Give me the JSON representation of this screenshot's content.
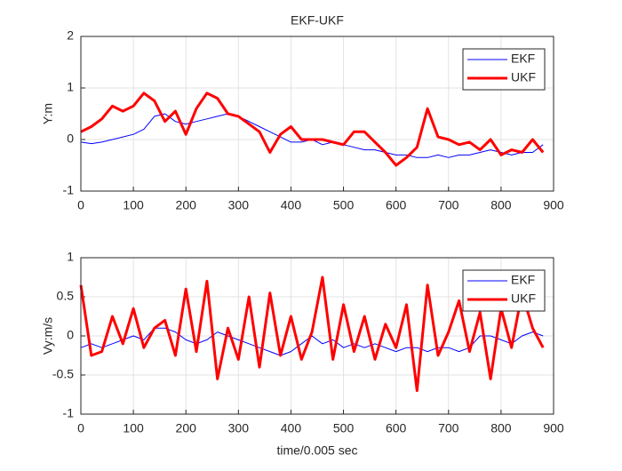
{
  "chart_data": [
    {
      "type": "line",
      "title": "EKF-UKF",
      "ylabel": "Y:m",
      "x": [
        0,
        20,
        40,
        60,
        80,
        100,
        120,
        140,
        160,
        180,
        200,
        220,
        240,
        260,
        280,
        300,
        320,
        340,
        360,
        380,
        400,
        420,
        440,
        460,
        480,
        500,
        520,
        540,
        560,
        580,
        600,
        620,
        640,
        660,
        680,
        700,
        720,
        740,
        760,
        780,
        800,
        820,
        840,
        860,
        880
      ],
      "series": [
        {
          "name": "EKF",
          "color": "#0000ff",
          "width": 1,
          "values": [
            -0.05,
            -0.08,
            -0.05,
            0.0,
            0.05,
            0.1,
            0.2,
            0.45,
            0.5,
            0.35,
            0.3,
            0.35,
            0.4,
            0.45,
            0.5,
            0.45,
            0.35,
            0.25,
            0.15,
            0.05,
            -0.05,
            -0.05,
            0.0,
            -0.1,
            -0.05,
            -0.1,
            -0.15,
            -0.2,
            -0.2,
            -0.25,
            -0.3,
            -0.3,
            -0.35,
            -0.35,
            -0.3,
            -0.35,
            -0.3,
            -0.3,
            -0.25,
            -0.2,
            -0.25,
            -0.3,
            -0.25,
            -0.25,
            -0.1
          ]
        },
        {
          "name": "UKF",
          "color": "#ff0000",
          "width": 3,
          "values": [
            0.15,
            0.25,
            0.4,
            0.65,
            0.55,
            0.65,
            0.9,
            0.75,
            0.35,
            0.55,
            0.1,
            0.6,
            0.9,
            0.8,
            0.5,
            0.45,
            0.3,
            0.15,
            -0.25,
            0.1,
            0.25,
            0.0,
            0.0,
            0.0,
            -0.05,
            -0.1,
            0.15,
            0.15,
            -0.05,
            -0.25,
            -0.5,
            -0.35,
            -0.15,
            0.6,
            0.05,
            0.0,
            -0.1,
            -0.05,
            -0.2,
            0.0,
            -0.3,
            -0.2,
            -0.25,
            0.0,
            -0.25
          ]
        }
      ],
      "xlim": [
        0,
        900
      ],
      "xticks": [
        0,
        100,
        200,
        300,
        400,
        500,
        600,
        700,
        800,
        900
      ],
      "ylim": [
        -1,
        2
      ],
      "yticks": [
        -1,
        0,
        1,
        2
      ],
      "grid": true,
      "legend": "northeast"
    },
    {
      "type": "line",
      "ylabel": "Vy:m/s",
      "xlabel": "time/0.005 sec",
      "x": [
        0,
        20,
        40,
        60,
        80,
        100,
        120,
        140,
        160,
        180,
        200,
        220,
        240,
        260,
        280,
        300,
        320,
        340,
        360,
        380,
        400,
        420,
        440,
        460,
        480,
        500,
        520,
        540,
        560,
        580,
        600,
        620,
        640,
        660,
        680,
        700,
        720,
        740,
        760,
        780,
        800,
        820,
        840,
        860,
        880
      ],
      "series": [
        {
          "name": "EKF",
          "color": "#0000ff",
          "width": 1,
          "values": [
            -0.15,
            -0.1,
            -0.15,
            -0.1,
            -0.05,
            0.0,
            -0.05,
            0.1,
            0.1,
            0.05,
            -0.05,
            -0.1,
            -0.05,
            0.05,
            0.0,
            -0.05,
            -0.1,
            -0.15,
            -0.2,
            -0.25,
            -0.2,
            -0.1,
            0.0,
            -0.1,
            -0.05,
            -0.15,
            -0.1,
            -0.15,
            -0.1,
            -0.15,
            -0.2,
            -0.15,
            -0.15,
            -0.2,
            -0.15,
            -0.15,
            -0.2,
            -0.15,
            0.0,
            0.0,
            -0.05,
            -0.1,
            0.0,
            0.05,
            0.0
          ]
        },
        {
          "name": "UKF",
          "color": "#ff0000",
          "width": 3,
          "values": [
            0.65,
            -0.25,
            -0.2,
            0.25,
            -0.1,
            0.35,
            -0.15,
            0.1,
            0.2,
            -0.25,
            0.6,
            -0.2,
            0.7,
            -0.55,
            0.1,
            -0.3,
            0.5,
            -0.4,
            0.55,
            -0.25,
            0.25,
            -0.3,
            0.05,
            0.75,
            -0.3,
            0.4,
            -0.2,
            0.25,
            -0.3,
            0.15,
            -0.15,
            0.4,
            -0.7,
            0.65,
            -0.25,
            0.05,
            0.45,
            -0.2,
            0.3,
            -0.55,
            0.35,
            -0.15,
            0.55,
            0.1,
            -0.15
          ]
        }
      ],
      "xlim": [
        0,
        900
      ],
      "xticks": [
        0,
        100,
        200,
        300,
        400,
        500,
        600,
        700,
        800,
        900
      ],
      "ylim": [
        -1,
        1
      ],
      "yticks": [
        -1,
        -0.5,
        0,
        0.5,
        1
      ],
      "grid": true,
      "legend": "northeast"
    }
  ]
}
